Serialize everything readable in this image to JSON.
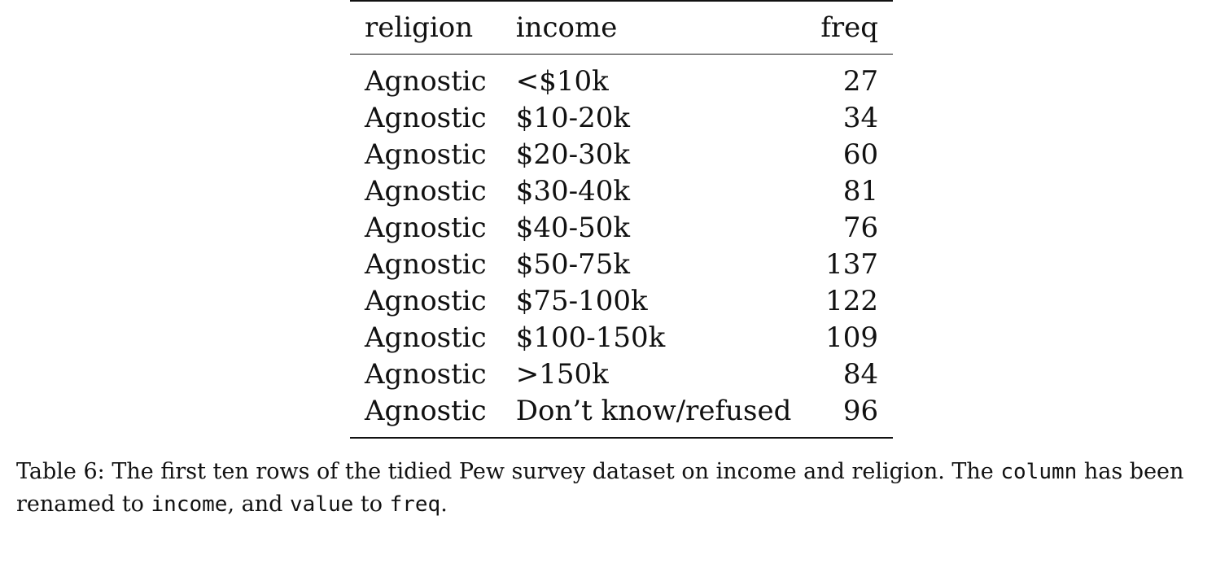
{
  "table": {
    "headers": [
      "religion",
      "income",
      "freq"
    ],
    "rows": [
      [
        "Agnostic",
        "<$10k",
        "27"
      ],
      [
        "Agnostic",
        "$10-20k",
        "34"
      ],
      [
        "Agnostic",
        "$20-30k",
        "60"
      ],
      [
        "Agnostic",
        "$30-40k",
        "81"
      ],
      [
        "Agnostic",
        "$40-50k",
        "76"
      ],
      [
        "Agnostic",
        "$50-75k",
        "137"
      ],
      [
        "Agnostic",
        "$75-100k",
        "122"
      ],
      [
        "Agnostic",
        "$100-150k",
        "109"
      ],
      [
        "Agnostic",
        ">150k",
        "84"
      ],
      [
        "Agnostic",
        "Don’t know/refused",
        "96"
      ]
    ]
  },
  "caption": {
    "label": "Table 6:",
    "text_1": "The first ten rows of the tidied Pew survey dataset on income and religion. The",
    "code_1": "column",
    "text_2": "has been renamed to",
    "code_2": "income",
    "text_3": ", and",
    "code_3": "value",
    "text_4": "to",
    "code_4": "freq",
    "text_5": "."
  }
}
